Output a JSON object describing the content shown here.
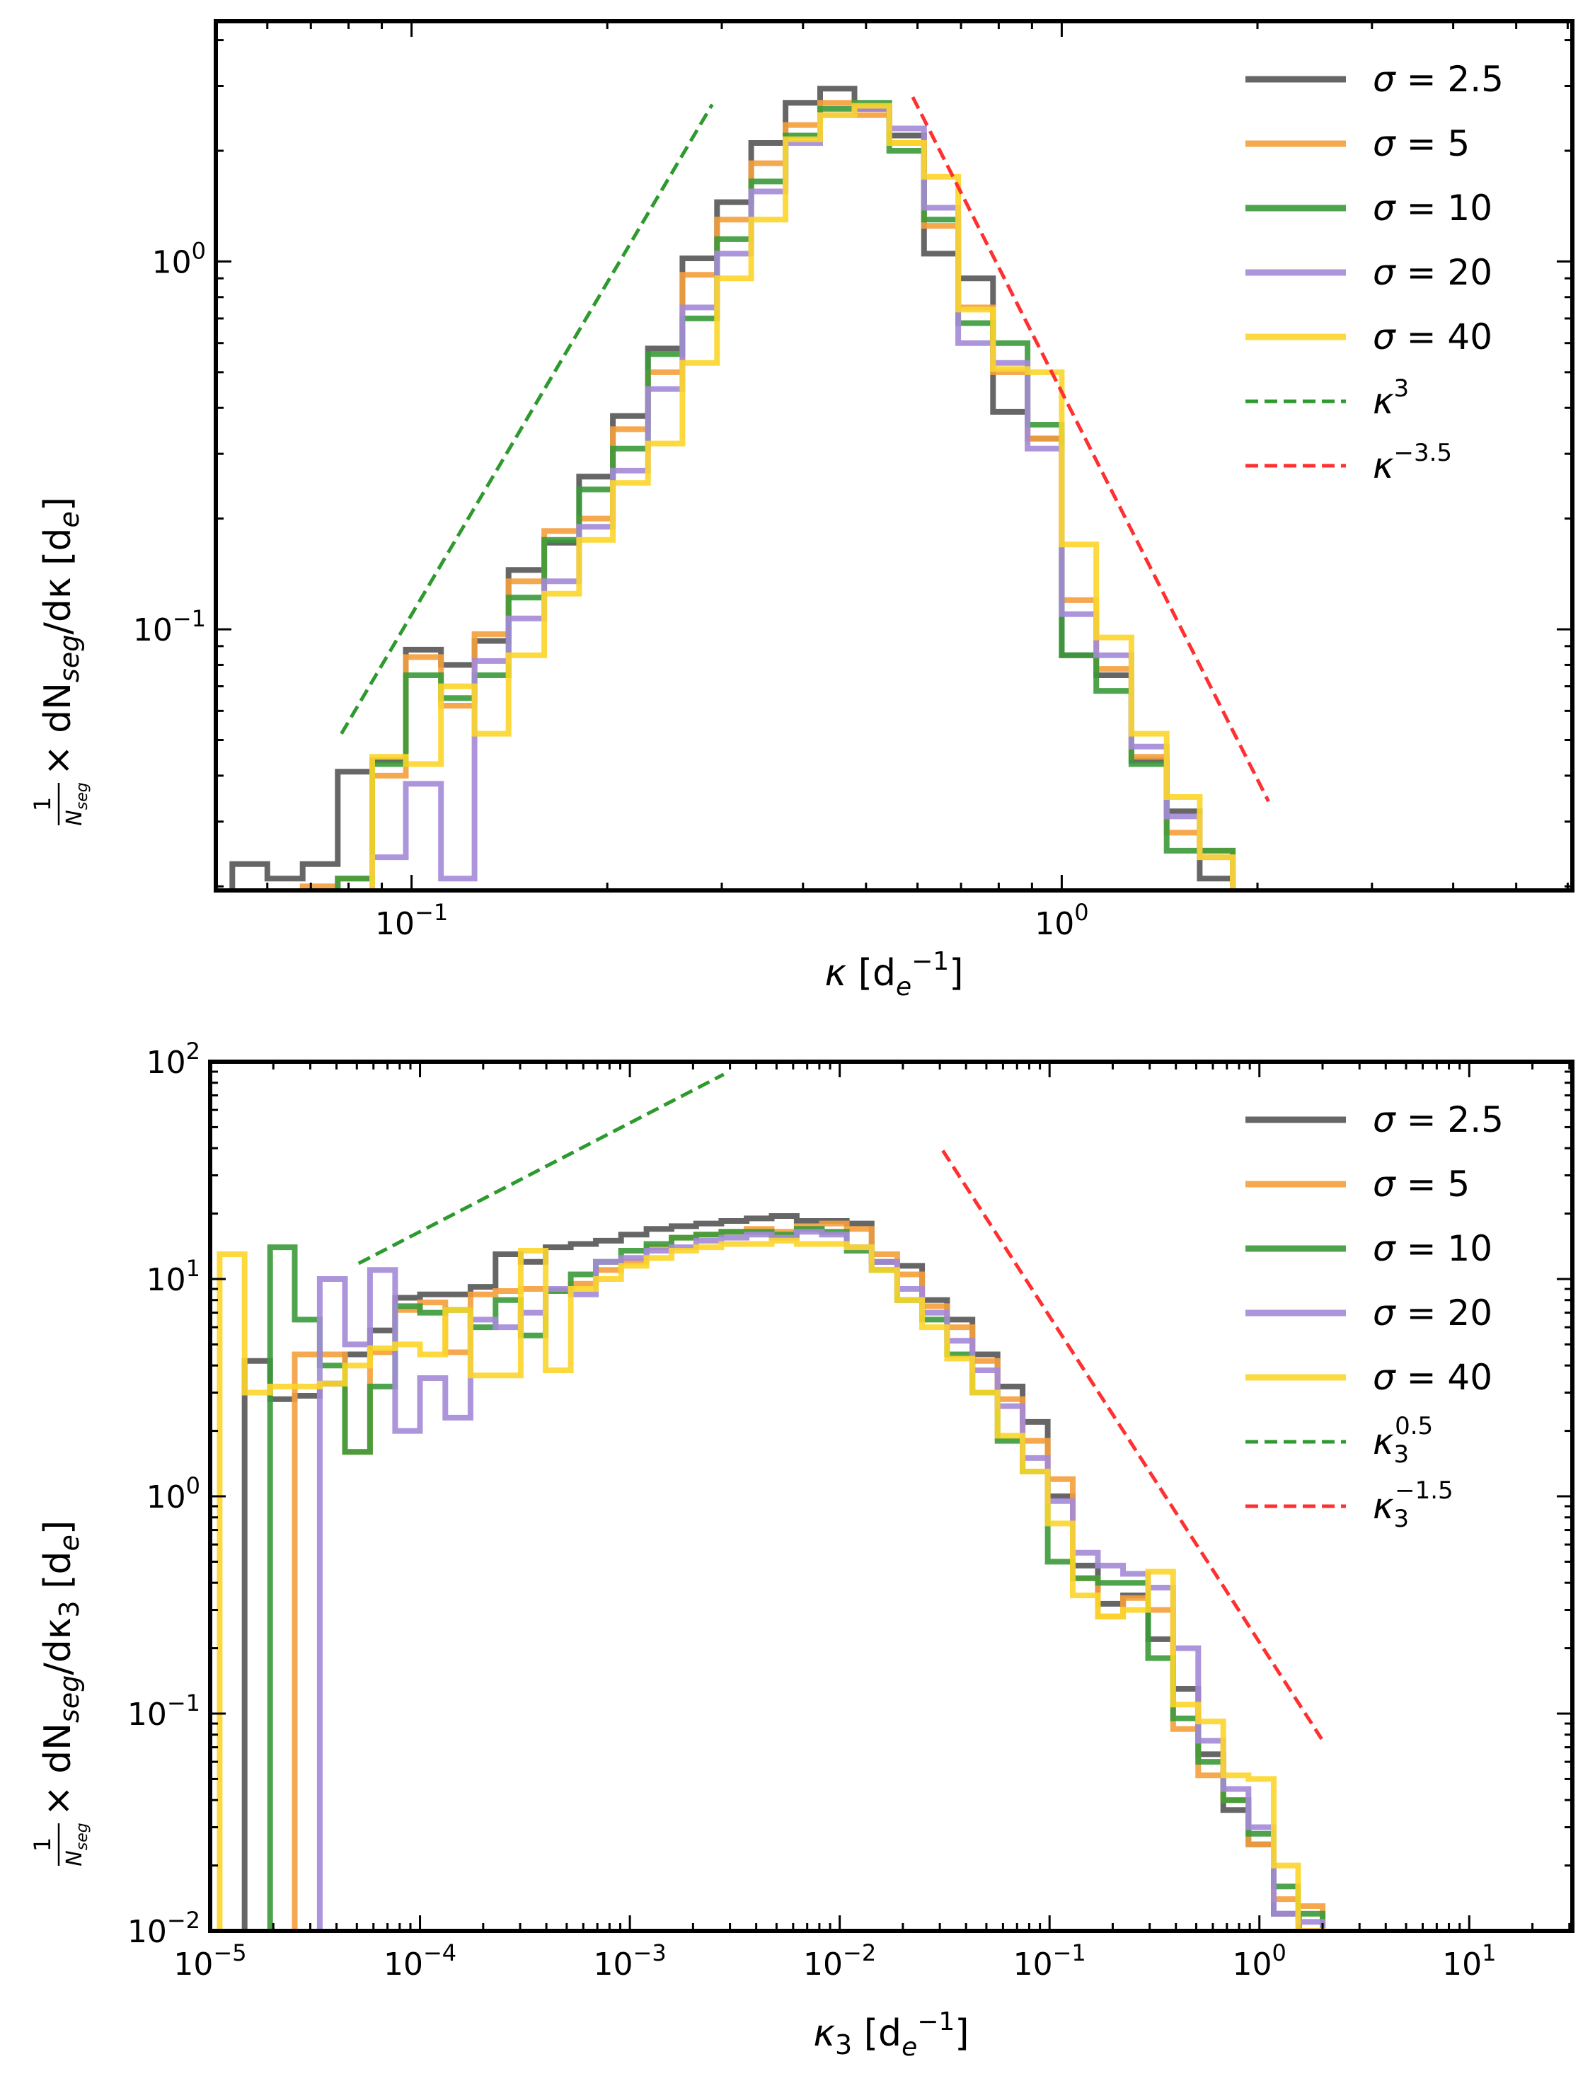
{
  "figure": {
    "description_panels": 2
  },
  "legend_symbols": {
    "sigma": "σ",
    "equals": "=",
    "kappa": "κ"
  },
  "chart_data": [
    {
      "type": "line",
      "step": true,
      "panel": "top",
      "xlabel": "κ  [d_e^{-1}]",
      "xlabel_parts": {
        "symbol": "κ",
        "unit_open": "[d",
        "unit_sub": "e",
        "unit_sup": "−1",
        "unit_close": "]"
      },
      "ylabel": "1/N_seg × dN_seg/dκ  [d_e]",
      "ylabel_parts": {
        "frac_num": "1",
        "frac_den": "N",
        "frac_den_sub": "seg",
        "times": "× dN",
        "sub1": "seg",
        "mid": "/dκ  [d",
        "sub2": "e",
        "end": "]"
      },
      "xscale": "log",
      "yscale": "log",
      "xlim": [
        0.05,
        6.1
      ],
      "ylim": [
        0.0195,
        4.5
      ],
      "xticks": [
        {
          "v": 0.1,
          "base": "10",
          "exp": "−1"
        },
        {
          "v": 1,
          "base": "10",
          "exp": "0"
        }
      ],
      "yticks": [
        {
          "v": 0.1,
          "base": "10",
          "exp": "−1"
        },
        {
          "v": 1,
          "base": "10",
          "exp": "0"
        }
      ],
      "series": [
        {
          "name": "σ = 2.5",
          "sigma": "2.5",
          "color": "#555555",
          "x": [
            0.053,
            0.06,
            0.068,
            0.077,
            0.087,
            0.098,
            0.111,
            0.125,
            0.141,
            0.16,
            0.181,
            0.204,
            0.231,
            0.261,
            0.295,
            0.333,
            0.376,
            0.425,
            0.48,
            0.543,
            0.614,
            0.693,
            0.784,
            0.886,
            1.0,
            1.13,
            1.28,
            1.45,
            1.63
          ],
          "y": [
            0.023,
            0.021,
            0.023,
            0.041,
            0.044,
            0.088,
            0.08,
            0.093,
            0.145,
            0.172,
            0.26,
            0.38,
            0.58,
            1.02,
            1.45,
            2.1,
            2.7,
            2.95,
            2.6,
            2.2,
            1.05,
            0.9,
            0.39,
            0.33,
            0.085,
            0.075,
            0.044,
            0.032,
            0.021
          ]
        },
        {
          "name": "σ = 5",
          "sigma": "5",
          "color": "#f59f3c",
          "x": [
            0.068,
            0.077,
            0.087,
            0.098,
            0.111,
            0.125,
            0.141,
            0.16,
            0.181,
            0.204,
            0.231,
            0.261,
            0.295,
            0.333,
            0.376,
            0.425,
            0.48,
            0.543,
            0.614,
            0.693,
            0.784,
            0.886,
            1.0,
            1.13,
            1.28,
            1.45,
            1.63
          ],
          "y": [
            0.02,
            0.021,
            0.04,
            0.084,
            0.062,
            0.097,
            0.135,
            0.185,
            0.2,
            0.35,
            0.5,
            0.92,
            1.3,
            1.85,
            2.35,
            2.7,
            2.5,
            2.1,
            1.25,
            0.75,
            0.5,
            0.33,
            0.12,
            0.078,
            0.045,
            0.028,
            0.025
          ]
        },
        {
          "name": "σ = 10",
          "sigma": "10",
          "color": "#3a9a3a",
          "x": [
            0.077,
            0.087,
            0.098,
            0.111,
            0.125,
            0.141,
            0.16,
            0.181,
            0.204,
            0.231,
            0.261,
            0.295,
            0.333,
            0.376,
            0.425,
            0.48,
            0.543,
            0.614,
            0.693,
            0.784,
            0.886,
            1.0,
            1.13,
            1.28,
            1.45,
            1.63
          ],
          "y": [
            0.021,
            0.043,
            0.075,
            0.065,
            0.075,
            0.122,
            0.175,
            0.24,
            0.31,
            0.56,
            0.7,
            1.15,
            1.65,
            2.2,
            2.6,
            2.7,
            2.0,
            1.3,
            0.68,
            0.6,
            0.36,
            0.085,
            0.068,
            0.043,
            0.025,
            0.025
          ]
        },
        {
          "name": "σ = 20",
          "sigma": "20",
          "color": "#a48ad8",
          "x": [
            0.087,
            0.098,
            0.111,
            0.125,
            0.141,
            0.16,
            0.181,
            0.204,
            0.231,
            0.261,
            0.295,
            0.333,
            0.376,
            0.425,
            0.48,
            0.543,
            0.614,
            0.693,
            0.784,
            0.886,
            1.0,
            1.13,
            1.28,
            1.45,
            1.63
          ],
          "y": [
            0.024,
            0.038,
            0.021,
            0.082,
            0.107,
            0.135,
            0.19,
            0.27,
            0.45,
            0.75,
            1.05,
            1.55,
            2.1,
            2.5,
            2.6,
            2.3,
            1.4,
            0.6,
            0.53,
            0.31,
            0.11,
            0.085,
            0.048,
            0.031,
            0.024
          ]
        },
        {
          "name": "σ = 40",
          "sigma": "40",
          "color": "#fcd52a",
          "x": [
            0.087,
            0.098,
            0.111,
            0.125,
            0.141,
            0.16,
            0.181,
            0.204,
            0.231,
            0.261,
            0.295,
            0.333,
            0.376,
            0.425,
            0.48,
            0.543,
            0.614,
            0.693,
            0.784,
            0.886,
            1.0,
            1.13,
            1.28,
            1.45,
            1.63
          ],
          "y": [
            0.045,
            0.043,
            0.07,
            0.052,
            0.085,
            0.125,
            0.175,
            0.25,
            0.32,
            0.53,
            0.9,
            1.3,
            2.15,
            2.5,
            2.65,
            2.1,
            1.7,
            0.74,
            0.51,
            0.5,
            0.17,
            0.095,
            0.052,
            0.035,
            0.024
          ]
        }
      ],
      "reference_lines": [
        {
          "name": "κ^3",
          "label_base": "κ",
          "label_sup": "3",
          "color": "#2e9a2e",
          "x0": 0.078,
          "x1": 0.29,
          "y0": 0.052,
          "exponent": 3
        },
        {
          "name": "κ^-3.5",
          "label_base": "κ",
          "label_sup": "−3.5",
          "color": "#ff3030",
          "x0": 0.59,
          "x1": 2.08,
          "y0": 2.8,
          "exponent": -3.5
        }
      ],
      "legend": {
        "placement": "top-right"
      }
    },
    {
      "type": "line",
      "step": true,
      "panel": "bottom",
      "xlabel": "κ3  [d_e^{-1}]",
      "xlabel_parts": {
        "symbol": "κ",
        "symbol_sub": "3",
        "unit_open": "[d",
        "unit_sub": "e",
        "unit_sup": "−1",
        "unit_close": "]"
      },
      "ylabel": "1/N_seg × dN_seg/dκ3  [d_e]",
      "ylabel_parts": {
        "frac_num": "1",
        "frac_den": "N",
        "frac_den_sub": "seg",
        "times": "× dN",
        "sub1": "seg",
        "mid": "/dκ",
        "sub_k": "3",
        "unit": "  [d",
        "sub2": "e",
        "end": "]"
      },
      "xscale": "log",
      "yscale": "log",
      "xlim": [
        1e-05,
        31
      ],
      "ylim": [
        0.01,
        100
      ],
      "xticks": [
        {
          "v": 1e-05,
          "base": "10",
          "exp": "−5"
        },
        {
          "v": 0.0001,
          "base": "10",
          "exp": "−4"
        },
        {
          "v": 0.001,
          "base": "10",
          "exp": "−3"
        },
        {
          "v": 0.01,
          "base": "10",
          "exp": "−2"
        },
        {
          "v": 0.1,
          "base": "10",
          "exp": "−1"
        },
        {
          "v": 1,
          "base": "10",
          "exp": "0"
        },
        {
          "v": 10,
          "base": "10",
          "exp": "1"
        }
      ],
      "yticks": [
        {
          "v": 0.01,
          "base": "10",
          "exp": "−2"
        },
        {
          "v": 0.1,
          "base": "10",
          "exp": "−1"
        },
        {
          "v": 1,
          "base": "10",
          "exp": "0"
        },
        {
          "v": 10,
          "base": "10",
          "exp": "1"
        },
        {
          "v": 100,
          "base": "10",
          "exp": "2"
        }
      ],
      "series": [
        {
          "name": "σ = 2.5",
          "sigma": "2.5",
          "color": "#555555",
          "x": [
            1.46e-05,
            1.93e-05,
            2.53e-05,
            3.33e-05,
            4.39e-05,
            5.78e-05,
            7.61e-05,
            0.0001,
            0.000132,
            0.000174,
            0.000229,
            0.000302,
            0.000397,
            0.000523,
            0.000689,
            0.000908,
            0.0012,
            0.00158,
            0.00207,
            0.00273,
            0.0036,
            0.00474,
            0.00624,
            0.00822,
            0.0108,
            0.0142,
            0.0188,
            0.0247,
            0.0325,
            0.0429,
            0.0565,
            0.0744,
            0.098,
            0.129,
            0.17,
            0.224,
            0.295,
            0.388,
            0.511,
            0.673,
            0.887,
            1.17
          ],
          "y": [
            4.2,
            2.8,
            2.9,
            3.3,
            4.5,
            5.8,
            8.2,
            8.5,
            8.5,
            9.2,
            13.0,
            12.0,
            14.0,
            14.5,
            15.0,
            16.0,
            17.0,
            17.5,
            18.0,
            18.5,
            19.0,
            19.5,
            18.5,
            18.5,
            18.0,
            12.0,
            11.5,
            8.0,
            6.5,
            4.5,
            3.2,
            2.2,
            1.0,
            0.48,
            0.32,
            0.35,
            0.22,
            0.13,
            0.065,
            0.036,
            0.025,
            0.012
          ]
        },
        {
          "name": "σ = 5",
          "sigma": "5",
          "color": "#f59f3c",
          "x": [
            2.53e-05,
            3.33e-05,
            4.39e-05,
            5.78e-05,
            7.61e-05,
            0.0001,
            0.000132,
            0.000174,
            0.000229,
            0.000302,
            0.000397,
            0.000523,
            0.000689,
            0.000908,
            0.0012,
            0.00158,
            0.00207,
            0.00273,
            0.0036,
            0.00474,
            0.00624,
            0.00822,
            0.0108,
            0.0142,
            0.0188,
            0.0247,
            0.0325,
            0.0429,
            0.0565,
            0.0744,
            0.098,
            0.129,
            0.17,
            0.224,
            0.295,
            0.388,
            0.511,
            0.673,
            0.887,
            1.17,
            1.53
          ],
          "y": [
            4.5,
            4.5,
            1.6,
            4.6,
            7.2,
            7.8,
            4.6,
            8.5,
            8.8,
            9.0,
            8.9,
            9.5,
            11.0,
            12.0,
            14.0,
            15.5,
            16.0,
            16.5,
            17.0,
            16.5,
            17.5,
            18.0,
            17.0,
            13.0,
            10.5,
            7.5,
            6.0,
            4.2,
            2.8,
            1.8,
            1.2,
            0.42,
            0.28,
            0.34,
            0.3,
            0.085,
            0.052,
            0.04,
            0.025,
            0.014,
            0.013
          ]
        },
        {
          "name": "σ = 10",
          "sigma": "10",
          "color": "#3a9a3a",
          "x": [
            1.93e-05,
            2.53e-05,
            3.33e-05,
            4.39e-05,
            5.78e-05,
            7.61e-05,
            0.0001,
            0.000132,
            0.000174,
            0.000229,
            0.000302,
            0.000397,
            0.000523,
            0.000689,
            0.000908,
            0.0012,
            0.00158,
            0.00207,
            0.00273,
            0.0036,
            0.00474,
            0.00624,
            0.00822,
            0.0108,
            0.0142,
            0.0188,
            0.0247,
            0.0325,
            0.0429,
            0.0565,
            0.0744,
            0.098,
            0.129,
            0.17,
            0.224,
            0.295,
            0.388,
            0.511,
            0.673,
            0.887,
            1.17,
            1.53
          ],
          "y": [
            14.0,
            6.5,
            4.0,
            1.6,
            3.2,
            7.5,
            7.0,
            7.2,
            6.0,
            8.0,
            5.5,
            8.8,
            10.5,
            12.0,
            13.5,
            14.5,
            15.5,
            16.0,
            16.5,
            16.5,
            16.0,
            17.0,
            16.5,
            13.5,
            11.0,
            8.0,
            6.5,
            4.5,
            3.0,
            1.8,
            1.3,
            0.5,
            0.42,
            0.4,
            0.4,
            0.18,
            0.095,
            0.06,
            0.04,
            0.028,
            0.016,
            0.012
          ]
        },
        {
          "name": "σ = 20",
          "sigma": "20",
          "color": "#a48ad8",
          "x": [
            3.33e-05,
            4.39e-05,
            5.78e-05,
            7.61e-05,
            0.0001,
            0.000132,
            0.000174,
            0.000229,
            0.000302,
            0.000397,
            0.000523,
            0.000689,
            0.000908,
            0.0012,
            0.00158,
            0.00207,
            0.00273,
            0.0036,
            0.00474,
            0.00624,
            0.00822,
            0.0108,
            0.0142,
            0.0188,
            0.0247,
            0.0325,
            0.0429,
            0.0565,
            0.0744,
            0.098,
            0.129,
            0.17,
            0.224,
            0.295,
            0.388,
            0.511,
            0.673,
            0.887,
            1.17,
            1.53
          ],
          "y": [
            10.0,
            5.0,
            11.0,
            2.0,
            3.5,
            2.3,
            6.5,
            6.0,
            7.0,
            9.0,
            8.5,
            12.0,
            12.5,
            13.5,
            14.0,
            15.0,
            15.5,
            16.0,
            15.5,
            16.5,
            16.0,
            14.0,
            12.0,
            9.0,
            7.0,
            5.2,
            3.8,
            2.6,
            1.5,
            0.95,
            0.55,
            0.48,
            0.44,
            0.38,
            0.2,
            0.075,
            0.045,
            0.03,
            0.012,
            0.011
          ]
        },
        {
          "name": "σ = 40",
          "sigma": "40",
          "color": "#fcd52a",
          "x": [
            1.11e-05,
            1.46e-05,
            1.93e-05,
            2.53e-05,
            3.33e-05,
            4.39e-05,
            5.78e-05,
            7.61e-05,
            0.0001,
            0.000132,
            0.000174,
            0.000229,
            0.000302,
            0.000397,
            0.000523,
            0.000689,
            0.000908,
            0.0012,
            0.00158,
            0.00207,
            0.00273,
            0.0036,
            0.00474,
            0.00624,
            0.00822,
            0.0108,
            0.0142,
            0.0188,
            0.0247,
            0.0325,
            0.0429,
            0.0565,
            0.0744,
            0.098,
            0.129,
            0.17,
            0.224,
            0.295,
            0.388,
            0.511,
            0.673,
            0.887,
            1.17,
            1.53
          ],
          "y": [
            13.0,
            3.0,
            3.2,
            3.2,
            3.3,
            4.0,
            4.8,
            5.0,
            4.5,
            7.2,
            3.6,
            3.6,
            13.5,
            3.8,
            9.0,
            10.0,
            11.5,
            12.5,
            13.5,
            14.0,
            14.5,
            14.5,
            15.0,
            14.5,
            14.5,
            14.0,
            11.0,
            8.0,
            6.0,
            4.3,
            3.0,
            1.9,
            1.3,
            0.75,
            0.35,
            0.28,
            0.3,
            0.45,
            0.11,
            0.092,
            0.052,
            0.05,
            0.02,
            0.01
          ]
        }
      ],
      "reference_lines": [
        {
          "name": "κ3^0.5",
          "label_base": "κ",
          "label_sub": "3",
          "label_sup": "0.5",
          "color": "#2e9a2e",
          "x0": 5.1e-05,
          "x1": 0.0028,
          "y0": 11.8,
          "exponent": 0.5
        },
        {
          "name": "κ3^-1.5",
          "label_base": "κ",
          "label_sub": "3",
          "label_sup": "−1.5",
          "color": "#ff3030",
          "x0": 0.031,
          "x1": 1.98,
          "y0": 39.0,
          "exponent": -1.5
        }
      ],
      "legend": {
        "placement": "top-right"
      }
    }
  ]
}
